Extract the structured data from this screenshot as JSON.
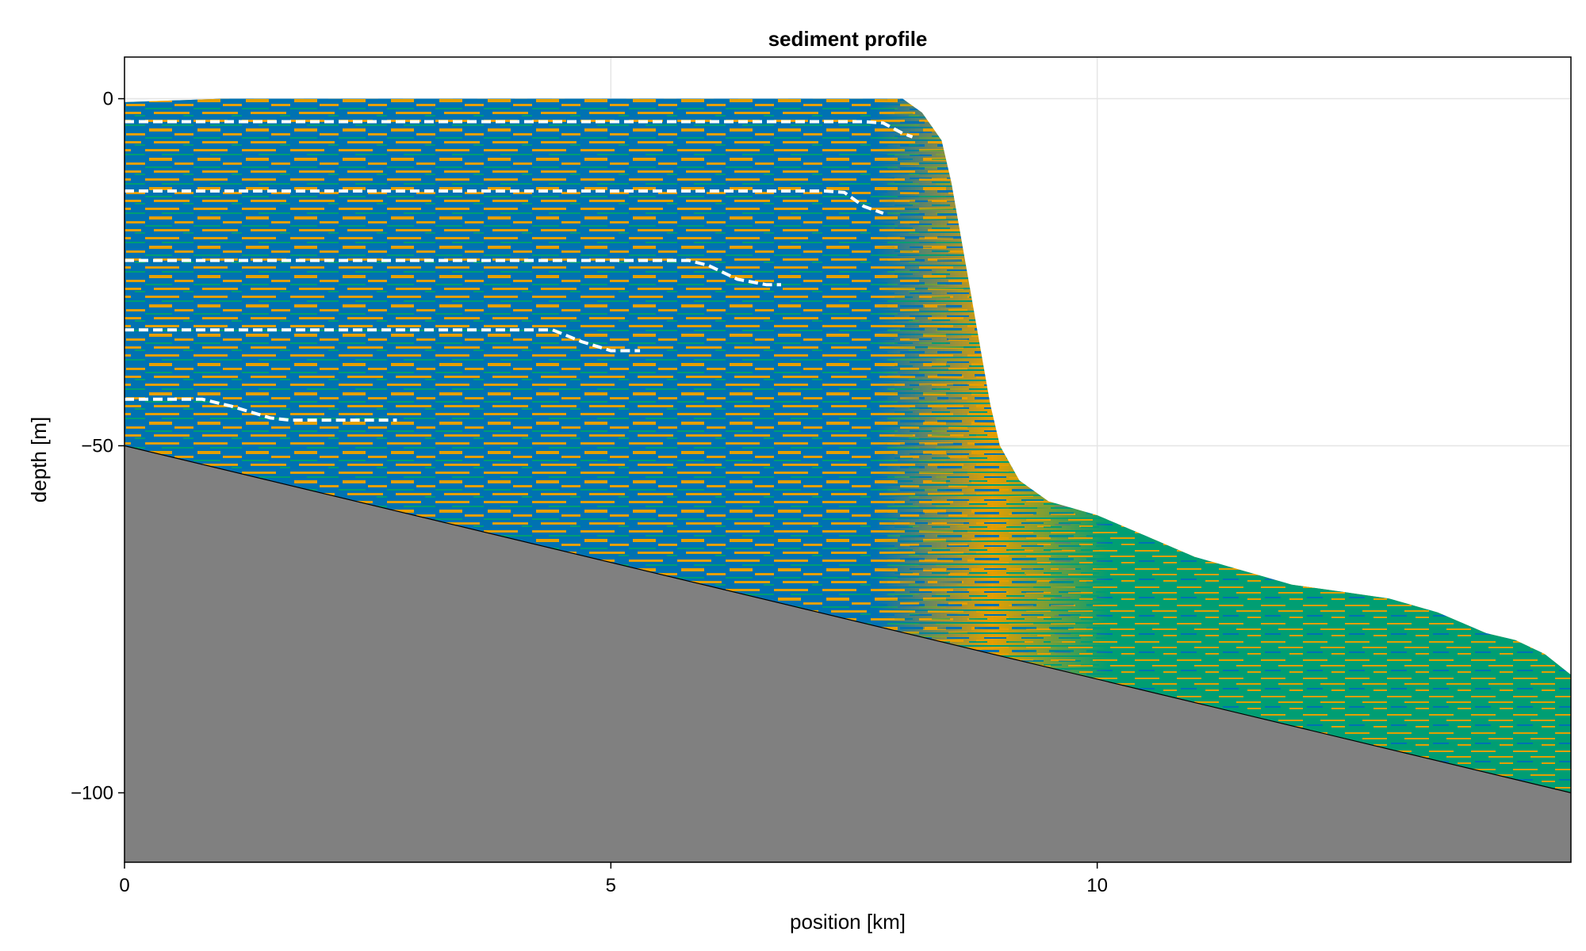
{
  "chart_data": {
    "type": "area",
    "title": "sediment profile",
    "xlabel": "position [km]",
    "ylabel": "depth [m]",
    "xlim": [
      0,
      14.87
    ],
    "ylim": [
      -110,
      6
    ],
    "x_ticks": [
      0,
      5,
      10
    ],
    "x_tick_labels": [
      "0",
      "5",
      "10"
    ],
    "y_ticks": [
      0,
      -50,
      -100
    ],
    "y_tick_labels": [
      "0",
      "−50",
      "−100"
    ],
    "grid": true,
    "legend": "none",
    "colors": {
      "basement": "#808080",
      "facies_1": "#0072b2",
      "facies_2": "#e69f00",
      "facies_3": "#009e73",
      "timelines": "#ffffff",
      "grid": "#e5e5e5"
    },
    "basement": {
      "x": [
        0,
        14.87
      ],
      "y": [
        -50,
        -100
      ]
    },
    "surface": {
      "x": [
        0,
        1,
        2,
        3,
        4,
        5,
        6,
        7,
        7.5,
        8,
        8.2,
        8.4,
        8.5,
        8.6,
        8.7,
        8.8,
        8.9,
        9.0,
        9.2,
        9.5,
        10,
        10.5,
        11,
        11.5,
        12,
        12.5,
        13,
        13.5,
        14,
        14.3,
        14.6,
        14.87
      ],
      "y": [
        -0.5,
        0,
        0,
        0,
        0,
        0,
        0,
        0,
        0,
        0,
        -2,
        -6,
        -12,
        -20,
        -28,
        -36,
        -44,
        -50,
        -55,
        -58,
        -60,
        -63,
        -66,
        -68,
        -70,
        -71,
        -72,
        -74,
        -77,
        -78,
        -80,
        -83
      ]
    },
    "timelines": [
      {
        "x": [
          0,
          7.6,
          7.8,
          8.0,
          8.1
        ],
        "y": [
          -3.3,
          -3.3,
          -3.5,
          -5,
          -5.5
        ]
      },
      {
        "x": [
          0,
          7.2,
          7.4,
          7.6,
          7.8
        ],
        "y": [
          -13.3,
          -13.3,
          -13.5,
          -15.5,
          -16.5
        ]
      },
      {
        "x": [
          0,
          5.8,
          6.0,
          6.3,
          6.6,
          6.75
        ],
        "y": [
          -23.3,
          -23.3,
          -24,
          -26,
          -26.8,
          -26.8
        ]
      },
      {
        "x": [
          0,
          4.4,
          4.7,
          5.0,
          5.3
        ],
        "y": [
          -33.3,
          -33.3,
          -35,
          -36.3,
          -36.3
        ]
      },
      {
        "x": [
          0,
          0.8,
          1.1,
          1.5,
          1.7,
          2.8
        ],
        "y": [
          -43.3,
          -43.3,
          -44.3,
          -46,
          -46.3,
          -46.3
        ]
      }
    ]
  }
}
